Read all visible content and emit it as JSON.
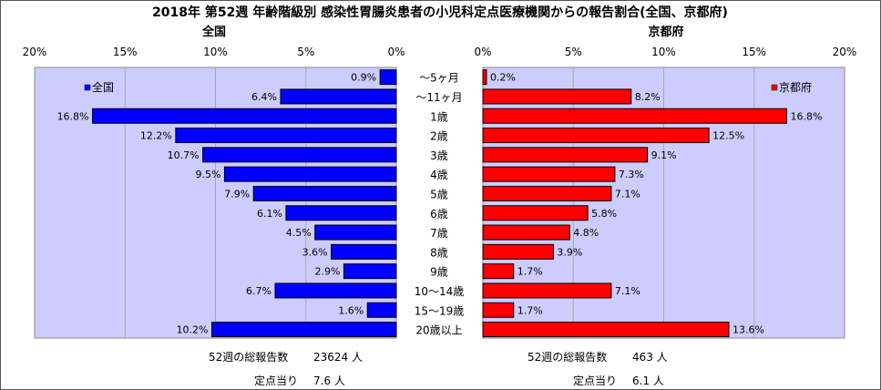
{
  "title": "2018年 第52週 年齢階級別 感染性胃腸炎患者の小児科定点医療機関からの報告割合(全国、京都府)",
  "colors": {
    "plot_bg": "#ccccff",
    "national_bar": "#0000ff",
    "kyoto_bar": "#ff0000",
    "grid": "#aaaaaa"
  },
  "chart_data": [
    {
      "type": "bar",
      "orientation": "horizontal",
      "direction": "right-to-left",
      "title": "全国",
      "legend": {
        "label": "全国",
        "position": "top-left"
      },
      "xlim": [
        0,
        20
      ],
      "x_ticks": [
        "20%",
        "15%",
        "10%",
        "5%",
        "0%"
      ],
      "grid": true,
      "categories": [
        "～5ヶ月",
        "～11ヶ月",
        "1歳",
        "2歳",
        "3歳",
        "4歳",
        "5歳",
        "6歳",
        "7歳",
        "8歳",
        "9歳",
        "10～14歳",
        "15～19歳",
        "20歳以上"
      ],
      "values": [
        0.9,
        6.4,
        16.8,
        12.2,
        10.7,
        9.5,
        7.9,
        6.1,
        4.5,
        3.6,
        2.9,
        6.7,
        1.6,
        10.2
      ],
      "labels": [
        "0.9%",
        "6.4%",
        "16.8%",
        "12.2%",
        "10.7%",
        "9.5%",
        "7.9%",
        "6.1%",
        "4.5%",
        "3.6%",
        "2.9%",
        "6.7%",
        "1.6%",
        "10.2%"
      ]
    },
    {
      "type": "bar",
      "orientation": "horizontal",
      "direction": "left-to-right",
      "title": "京都府",
      "legend": {
        "label": "京都府",
        "position": "top-right"
      },
      "xlim": [
        0,
        20
      ],
      "x_ticks": [
        "0%",
        "5%",
        "10%",
        "15%",
        "20%"
      ],
      "grid": true,
      "categories": [
        "～5ヶ月",
        "～11ヶ月",
        "1歳",
        "2歳",
        "3歳",
        "4歳",
        "5歳",
        "6歳",
        "7歳",
        "8歳",
        "9歳",
        "10～14歳",
        "15～19歳",
        "20歳以上"
      ],
      "values": [
        0.2,
        8.2,
        16.8,
        12.5,
        9.1,
        7.3,
        7.1,
        5.8,
        4.8,
        3.9,
        1.7,
        7.1,
        1.7,
        13.6
      ],
      "labels": [
        "0.2%",
        "8.2%",
        "16.8%",
        "12.5%",
        "9.1%",
        "7.3%",
        "7.1%",
        "5.8%",
        "4.8%",
        "3.9%",
        "1.7%",
        "7.1%",
        "1.7%",
        "13.6%"
      ]
    }
  ],
  "summary": {
    "national": {
      "total_label": "52週の総報告数",
      "total_value": "23624 人",
      "per_label": "定点当り",
      "per_value": "7.6 人"
    },
    "kyoto": {
      "total_label": "52週の総報告数",
      "total_value": "463 人",
      "per_label": "定点当り",
      "per_value": "6.1 人"
    }
  }
}
